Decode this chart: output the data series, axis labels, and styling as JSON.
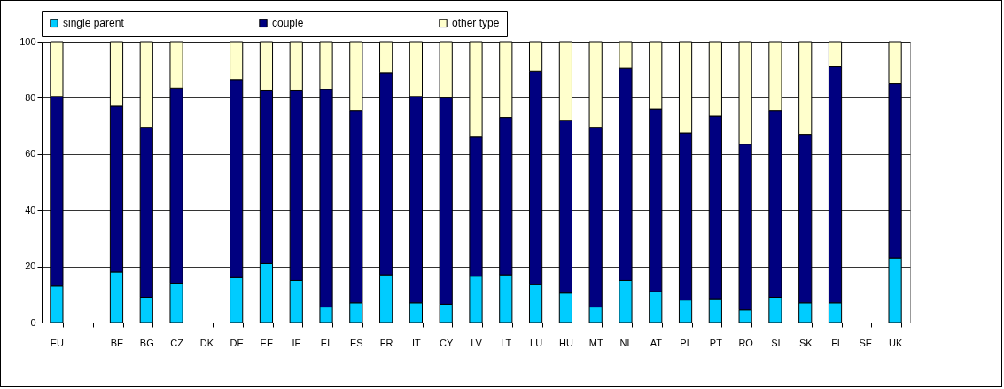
{
  "chart_data": {
    "type": "bar",
    "stacked": true,
    "categories": [
      "EU",
      null,
      "BE",
      "BG",
      "CZ",
      "DK",
      "DE",
      "EE",
      "IE",
      "EL",
      "ES",
      "FR",
      "IT",
      "CY",
      "LV",
      "LT",
      "LU",
      "HU",
      "MT",
      "NL",
      "AT",
      "PL",
      "PT",
      "RO",
      "SI",
      "SK",
      "FI",
      "SE",
      "UK"
    ],
    "series": [
      {
        "name": "single parent",
        "color": "#00ccff",
        "values": [
          13,
          null,
          18,
          9,
          14,
          null,
          16,
          21,
          15,
          5.5,
          7,
          17,
          7,
          6.5,
          16.5,
          17,
          13.5,
          10.5,
          5.5,
          15,
          11,
          8,
          8.5,
          4.5,
          9,
          7,
          7,
          null,
          23
        ]
      },
      {
        "name": "couple",
        "color": "#000080",
        "values": [
          67.5,
          null,
          59,
          60.5,
          69.5,
          null,
          70.5,
          61.5,
          67.5,
          77.5,
          68.5,
          72,
          73.5,
          73.5,
          49.5,
          56,
          76,
          61.5,
          64,
          75.5,
          65,
          59.5,
          65,
          59,
          66.5,
          60,
          84,
          null,
          62
        ]
      },
      {
        "name": "other type",
        "color": "#ffffcc",
        "values": [
          19.5,
          null,
          23,
          30.5,
          16.5,
          null,
          13.5,
          17.5,
          17.5,
          17,
          24.5,
          11,
          19.5,
          20,
          34,
          27,
          10.5,
          28,
          30.5,
          9.5,
          24,
          32.5,
          26.5,
          36.5,
          24.5,
          33,
          9,
          null,
          15
        ]
      }
    ],
    "ylim": [
      0,
      100
    ],
    "yticks": [
      0,
      20,
      40,
      60,
      80,
      100
    ],
    "grid": "y",
    "legend": "top"
  }
}
